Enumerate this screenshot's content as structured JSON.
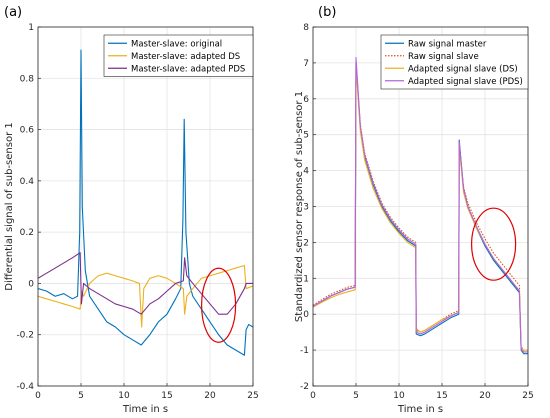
{
  "chart_data": [
    {
      "panel": "(a)",
      "type": "line",
      "xlabel": "Time in s",
      "ylabel": "Differential signal of sub-sensor 1",
      "xlim": [
        0,
        25
      ],
      "ylim": [
        -0.4,
        1
      ],
      "xticks": [
        "0",
        "5",
        "10",
        "15",
        "20",
        "25"
      ],
      "yticks": [
        "-0.4",
        "-0.2",
        "0",
        "0.2",
        "0.4",
        "0.6",
        "0.8",
        "1"
      ],
      "grid": true,
      "legend_position": "top-right",
      "annotation": "red ellipse around t≈21 s",
      "series": [
        {
          "name": "Master-slave: original",
          "color": "#0072BD",
          "x": [
            0,
            1,
            2,
            3,
            4,
            4.6,
            4.85,
            5.0,
            5.15,
            5.5,
            6,
            7,
            8,
            9,
            10,
            11,
            12,
            13,
            14,
            15,
            16,
            16.6,
            16.85,
            17.0,
            17.2,
            17.6,
            18,
            19,
            20,
            21,
            22,
            23,
            24,
            24.2,
            24.5,
            25
          ],
          "y": [
            -0.02,
            -0.03,
            -0.05,
            -0.04,
            -0.06,
            -0.05,
            0.2,
            0.91,
            0.3,
            0.05,
            -0.05,
            -0.1,
            -0.15,
            -0.17,
            -0.2,
            -0.22,
            -0.24,
            -0.2,
            -0.15,
            -0.12,
            -0.06,
            -0.02,
            0.25,
            0.64,
            0.2,
            0.0,
            -0.05,
            -0.1,
            -0.15,
            -0.2,
            -0.24,
            -0.26,
            -0.28,
            -0.18,
            -0.16,
            -0.17
          ]
        },
        {
          "name": "Master-slave: adapted DS",
          "color": "#EDB120",
          "x": [
            0,
            1,
            2,
            3,
            4,
            4.9,
            5.05,
            5.3,
            6,
            7,
            8,
            9,
            10,
            11,
            11.8,
            12.05,
            12.3,
            13,
            14,
            15,
            16,
            16.9,
            17.05,
            17.3,
            18,
            19,
            20,
            21,
            22,
            23,
            24,
            24.2,
            25
          ],
          "y": [
            -0.05,
            -0.06,
            -0.07,
            -0.08,
            -0.09,
            -0.1,
            -0.03,
            -0.05,
            0.0,
            0.03,
            0.04,
            0.03,
            0.02,
            0.01,
            0.0,
            -0.17,
            -0.02,
            0.02,
            0.03,
            0.02,
            0.0,
            -0.02,
            -0.12,
            -0.05,
            -0.02,
            0.02,
            0.03,
            0.04,
            0.05,
            0.06,
            0.07,
            -0.02,
            -0.01
          ]
        },
        {
          "name": "Master-slave: adapted PDS",
          "color": "#7E2F8E",
          "x": [
            0,
            1,
            2,
            3,
            4,
            4.9,
            5.05,
            5.3,
            6,
            7,
            8,
            9,
            10,
            11,
            12,
            13,
            14,
            15,
            16,
            16.9,
            17.05,
            17.3,
            18,
            19,
            20,
            21,
            22,
            23,
            24,
            24.2,
            25
          ],
          "y": [
            0.02,
            0.04,
            0.06,
            0.08,
            0.1,
            0.12,
            -0.08,
            0.0,
            -0.02,
            -0.04,
            -0.06,
            -0.08,
            -0.09,
            -0.1,
            -0.12,
            -0.08,
            -0.06,
            -0.03,
            0.0,
            0.01,
            0.1,
            0.03,
            0.0,
            -0.04,
            -0.08,
            -0.12,
            -0.12,
            -0.08,
            -0.02,
            0.0,
            0.0
          ]
        }
      ]
    },
    {
      "panel": "(b)",
      "type": "line",
      "xlabel": "Time in s",
      "ylabel": "Standardized sensor response of sub-sensor 1",
      "xlim": [
        0,
        25
      ],
      "ylim": [
        -2,
        8
      ],
      "xticks": [
        "0",
        "5",
        "10",
        "15",
        "20",
        "25"
      ],
      "yticks": [
        "-2",
        "-1",
        "0",
        "1",
        "2",
        "3",
        "4",
        "5",
        "6",
        "7",
        "8"
      ],
      "grid": true,
      "legend_position": "top-right",
      "annotation": "red ellipse around t≈21 s",
      "series": [
        {
          "name": "Raw signal master",
          "color": "#0072BD",
          "x": [
            0,
            1,
            2,
            3,
            4,
            4.9,
            5.0,
            5.5,
            6,
            7,
            8,
            9,
            10,
            11,
            11.95,
            12.0,
            12.5,
            13,
            14,
            15,
            16,
            16.95,
            17.0,
            17.5,
            18,
            19,
            20,
            21,
            22,
            23,
            24,
            24.2,
            24.5,
            25
          ],
          "y": [
            0.2,
            0.35,
            0.5,
            0.6,
            0.7,
            0.75,
            7.0,
            5.2,
            4.4,
            3.6,
            3.0,
            2.6,
            2.3,
            2.05,
            1.9,
            -0.55,
            -0.6,
            -0.55,
            -0.4,
            -0.25,
            -0.1,
            0.0,
            4.85,
            3.5,
            3.0,
            2.4,
            1.9,
            1.5,
            1.2,
            0.9,
            0.6,
            -1.0,
            -1.1,
            -1.1
          ]
        },
        {
          "name": "Raw signal slave",
          "color": "#D95319",
          "x": [
            0,
            1,
            2,
            3,
            4,
            4.9,
            5.0,
            5.5,
            6,
            7,
            8,
            9,
            10,
            11,
            11.95,
            12.0,
            12.5,
            13,
            14,
            15,
            16,
            16.95,
            17.0,
            17.5,
            18,
            19,
            20,
            21,
            22,
            23,
            24,
            24.2,
            24.5,
            25
          ],
          "y": [
            0.25,
            0.4,
            0.55,
            0.65,
            0.75,
            0.8,
            7.05,
            5.3,
            4.5,
            3.7,
            3.1,
            2.7,
            2.4,
            2.15,
            2.0,
            -0.45,
            -0.5,
            -0.45,
            -0.3,
            -0.15,
            0.0,
            0.1,
            4.75,
            3.55,
            3.1,
            2.55,
            2.1,
            1.7,
            1.4,
            1.1,
            0.8,
            -0.9,
            -1.0,
            -1.0
          ]
        },
        {
          "name": "Adapted signal slave (DS)",
          "color": "#EDB120",
          "x": [
            0,
            1,
            2,
            3,
            4,
            4.9,
            5.0,
            5.5,
            6,
            7,
            8,
            9,
            10,
            11,
            11.95,
            12.0,
            12.5,
            13,
            14,
            15,
            16,
            16.95,
            17.0,
            17.5,
            18,
            19,
            20,
            21,
            22,
            23,
            24,
            24.2,
            24.5,
            25
          ],
          "y": [
            0.2,
            0.33,
            0.45,
            0.55,
            0.62,
            0.68,
            6.9,
            5.1,
            4.3,
            3.5,
            2.95,
            2.55,
            2.25,
            2.0,
            1.85,
            -0.4,
            -0.5,
            -0.45,
            -0.3,
            -0.15,
            -0.05,
            0.05,
            4.7,
            3.4,
            2.95,
            2.4,
            1.95,
            1.55,
            1.25,
            0.95,
            0.65,
            -0.95,
            -1.0,
            -1.0
          ]
        },
        {
          "name": "Adapted signal slave (PDS)",
          "color": "#B464DC",
          "x": [
            0,
            1,
            2,
            3,
            4,
            4.9,
            5.0,
            5.5,
            6,
            7,
            8,
            9,
            10,
            11,
            11.95,
            12.0,
            12.5,
            13,
            14,
            15,
            16,
            16.95,
            17.0,
            17.5,
            18,
            19,
            20,
            21,
            22,
            23,
            24,
            24.2,
            24.5,
            25
          ],
          "y": [
            0.22,
            0.36,
            0.5,
            0.6,
            0.7,
            0.75,
            7.15,
            5.25,
            4.45,
            3.65,
            3.05,
            2.65,
            2.35,
            2.1,
            1.95,
            -0.5,
            -0.55,
            -0.5,
            -0.35,
            -0.2,
            -0.05,
            0.05,
            4.8,
            3.5,
            3.0,
            2.45,
            1.95,
            1.55,
            1.25,
            0.95,
            0.65,
            -0.98,
            -1.05,
            -1.05
          ]
        }
      ]
    }
  ]
}
